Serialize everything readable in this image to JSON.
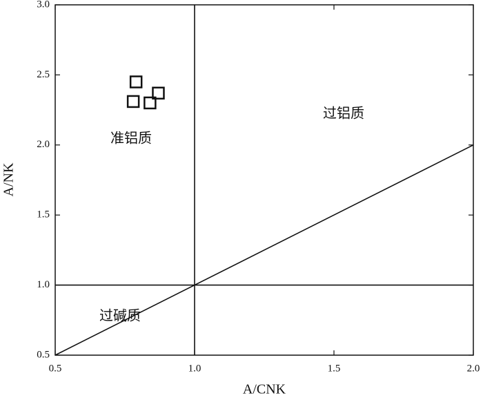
{
  "chart_data": {
    "type": "scatter",
    "x_label": "A/CNK",
    "y_label": "A/NK",
    "series": [
      {
        "marker": "square",
        "color": "#111111",
        "x": [
          0.79,
          0.78,
          0.84,
          0.87
        ],
        "values": [
          2.45,
          2.31,
          2.3,
          2.37
        ]
      }
    ],
    "reference_lines": [
      {
        "x": [
          1.0,
          1.0
        ],
        "y": [
          0.5,
          3.0
        ]
      },
      {
        "x": [
          0.5,
          2.0
        ],
        "y": [
          1.0,
          1.0
        ]
      },
      {
        "x": [
          0.5,
          2.0
        ],
        "y": [
          0.5,
          2.0
        ]
      }
    ],
    "annotations": [
      "准铝质",
      "过铝质",
      "过碱质"
    ],
    "xlim": [
      0.5,
      2.0
    ],
    "xticks": [
      0.5,
      {
        "value": 1.0,
        "label": "1.0"
      },
      1.5,
      {
        "value": 2.0,
        "label": "2.0"
      }
    ],
    "ylim": [
      0.5,
      3.0
    ],
    "yticks": [
      0.5,
      {
        "value": 1.0,
        "label": "1.0"
      },
      1.5,
      {
        "value": 2.0,
        "label": "2.0"
      },
      2.5,
      {
        "value": 3.0,
        "label": "3.0"
      }
    ],
    "grid": false
  }
}
